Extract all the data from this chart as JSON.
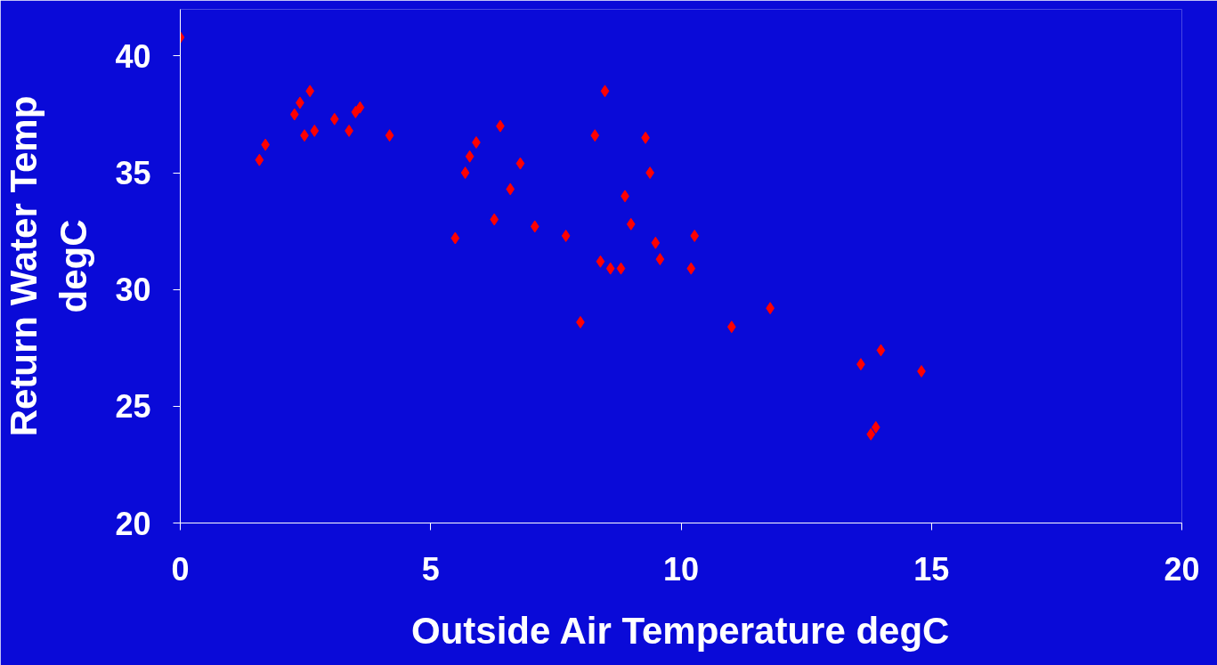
{
  "chart_data": {
    "type": "scatter",
    "xlabel": "Outside Air Temperature degC",
    "ylabel": "Return Water Temp degC",
    "x": [
      0,
      1.58,
      1.7,
      2.28,
      2.39,
      2.59,
      2.48,
      2.68,
      3.08,
      3.37,
      3.5,
      3.59,
      4.18,
      5.49,
      5.69,
      5.78,
      5.91,
      6.27,
      6.39,
      6.59,
      6.79,
      7.08,
      7.7,
      7.99,
      8.28,
      8.39,
      8.48,
      8.59,
      8.8,
      8.88,
      9.0,
      9.29,
      9.38,
      9.49,
      9.58,
      10.2,
      10.27,
      11.01,
      11.78,
      13.59,
      13.79,
      13.89,
      13.99,
      14.8
    ],
    "series": [
      {
        "color": "#ff0000",
        "values": [
          40.8,
          35.55,
          36.2,
          37.5,
          38.0,
          38.5,
          36.6,
          36.8,
          37.3,
          36.8,
          37.6,
          37.8,
          36.6,
          32.2,
          35.0,
          35.7,
          36.3,
          33.0,
          37.0,
          34.3,
          35.4,
          32.7,
          32.3,
          28.6,
          36.6,
          31.2,
          38.5,
          30.9,
          30.9,
          34.0,
          32.8,
          36.5,
          35.0,
          32.0,
          31.3,
          30.9,
          32.3,
          28.4,
          29.2,
          26.8,
          23.8,
          24.1,
          27.4,
          26.5
        ]
      }
    ],
    "xlim": [
      0,
      20
    ],
    "ylim": [
      20,
      42
    ],
    "xticks": [
      0,
      5,
      10,
      15,
      20
    ],
    "yticks": [
      20,
      25,
      30,
      35,
      40
    ],
    "marker": "diamond",
    "grid": false
  }
}
